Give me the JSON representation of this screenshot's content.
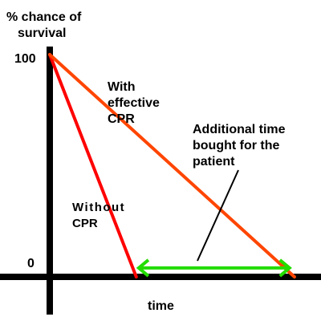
{
  "chart_data": {
    "type": "line",
    "ylabel_line1": "% chance of",
    "ylabel_line2": "survival",
    "xlabel": "time",
    "y_tick_top": "100",
    "y_tick_bottom": "0",
    "ylim": [
      0,
      100
    ],
    "xlim": [
      0,
      1
    ],
    "grid": false,
    "series": [
      {
        "name_lines": [
          "Without",
          "CPR"
        ],
        "color": "#ff0000",
        "x": [
          0,
          0.35
        ],
        "y": [
          100,
          0
        ]
      },
      {
        "name_lines": [
          "With",
          "effective",
          "CPR"
        ],
        "color": "#ff4500",
        "x": [
          0,
          0.99
        ],
        "y": [
          100,
          0
        ]
      }
    ],
    "annotation": {
      "text_lines": [
        "Additional time",
        "bought for the",
        "patient"
      ],
      "arrow_color": "#22dd00",
      "span_x": [
        0.36,
        0.97
      ],
      "arrow_y": 4
    },
    "axis_color": "#000000"
  }
}
